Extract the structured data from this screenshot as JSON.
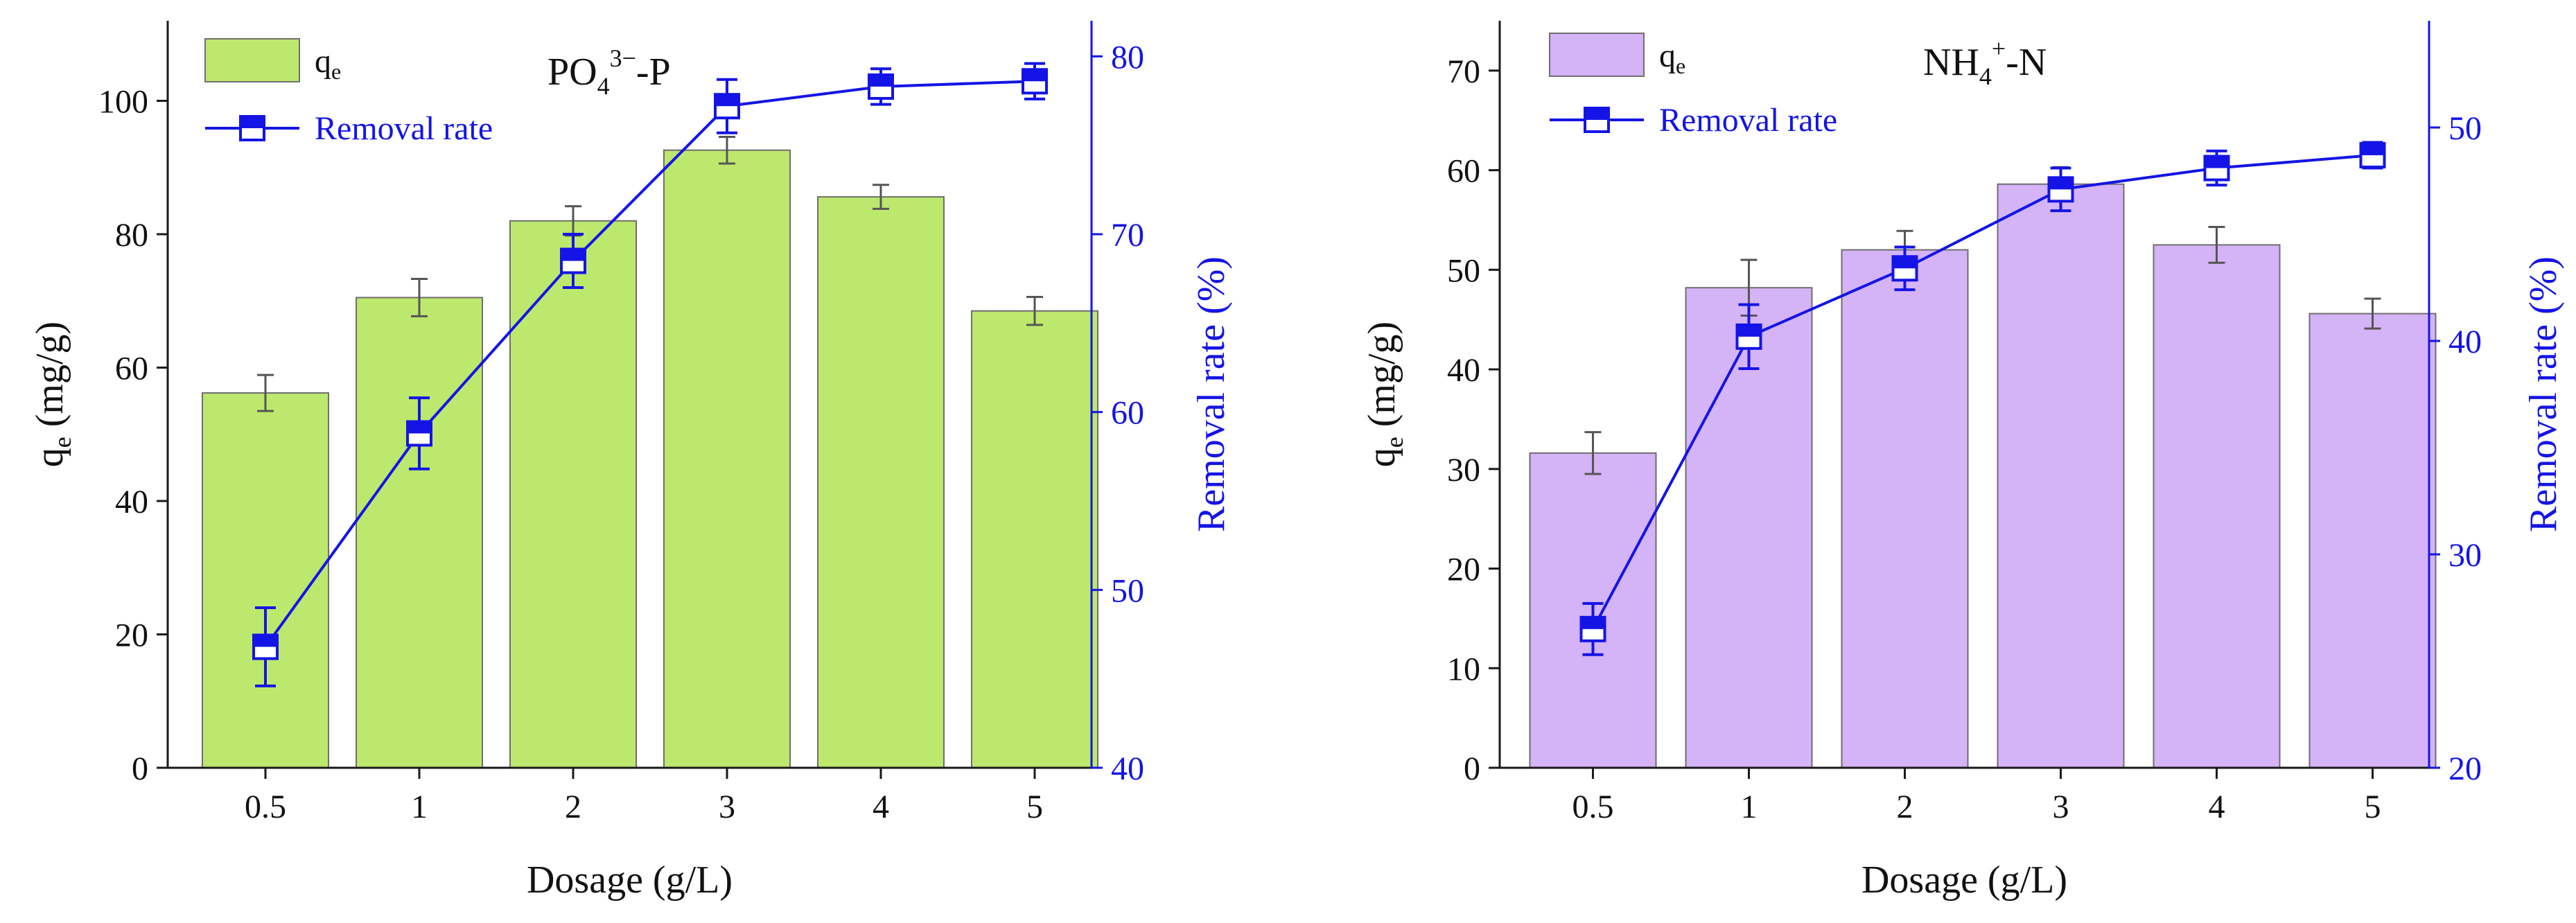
{
  "colors": {
    "axis": "#1a1a1a",
    "line": "#1414e6",
    "bar_outline": "#6e6e6e",
    "error_bar": "#555555"
  },
  "chart_data": [
    {
      "type": "bar",
      "title": "PO4 3−-P",
      "title_parts": {
        "base": "PO",
        "sub": "4",
        "sup": "3−",
        "suffix": "-P"
      },
      "xlabel": "Dosage (g/L)",
      "ylabel_parts": {
        "base": "q",
        "sub": "e",
        "rest": " (mg/g)"
      },
      "y2label": "Removal rate (%)",
      "categories": [
        "0.5",
        "1",
        "2",
        "3",
        "4",
        "5"
      ],
      "ylim": [
        0,
        112
      ],
      "yticks": [
        "0",
        "20",
        "40",
        "60",
        "80",
        "100"
      ],
      "y2lim": [
        40,
        82
      ],
      "y2ticks": [
        "40",
        "50",
        "60",
        "70",
        "80"
      ],
      "bar_color": "#bde86e",
      "series": [
        {
          "name": "qe",
          "legend_base": "q",
          "legend_sub": "e",
          "axis": "left",
          "kind": "bar",
          "values": [
            56.2,
            70.5,
            82.0,
            92.6,
            85.6,
            68.5
          ],
          "errors": [
            2.7,
            2.8,
            2.2,
            2.0,
            1.8,
            2.1
          ]
        },
        {
          "name": "Removal rate",
          "axis": "right",
          "kind": "line",
          "values": [
            46.8,
            58.8,
            68.5,
            77.2,
            78.3,
            78.6
          ],
          "errors": [
            2.2,
            2.0,
            1.5,
            1.5,
            1.0,
            1.0
          ]
        }
      ]
    },
    {
      "type": "bar",
      "title": "NH4 +-N",
      "title_parts": {
        "base": "NH",
        "sub": "4",
        "sup": "+",
        "suffix": "-N"
      },
      "xlabel": "Dosage (g/L)",
      "ylabel_parts": {
        "base": "q",
        "sub": "e",
        "rest": " (mg/g)"
      },
      "y2label": "Removal rate (%)",
      "categories": [
        "0.5",
        "1",
        "2",
        "3",
        "4",
        "5"
      ],
      "ylim": [
        0,
        75
      ],
      "yticks": [
        "0",
        "10",
        "20",
        "30",
        "40",
        "50",
        "60",
        "70"
      ],
      "y2lim": [
        20,
        55
      ],
      "y2ticks": [
        "20",
        "30",
        "40",
        "50"
      ],
      "bar_color": "#d4b3f7",
      "series": [
        {
          "name": "qe",
          "legend_base": "q",
          "legend_sub": "e",
          "axis": "left",
          "kind": "bar",
          "values": [
            31.6,
            48.2,
            52.0,
            58.6,
            52.5,
            45.6
          ],
          "errors": [
            2.1,
            2.8,
            1.9,
            1.7,
            1.8,
            1.5
          ]
        },
        {
          "name": "Removal rate",
          "axis": "right",
          "kind": "line",
          "values": [
            26.5,
            40.2,
            43.4,
            47.1,
            48.1,
            48.7
          ],
          "errors": [
            1.2,
            1.5,
            1.0,
            1.0,
            0.8,
            0.6
          ]
        }
      ]
    }
  ]
}
